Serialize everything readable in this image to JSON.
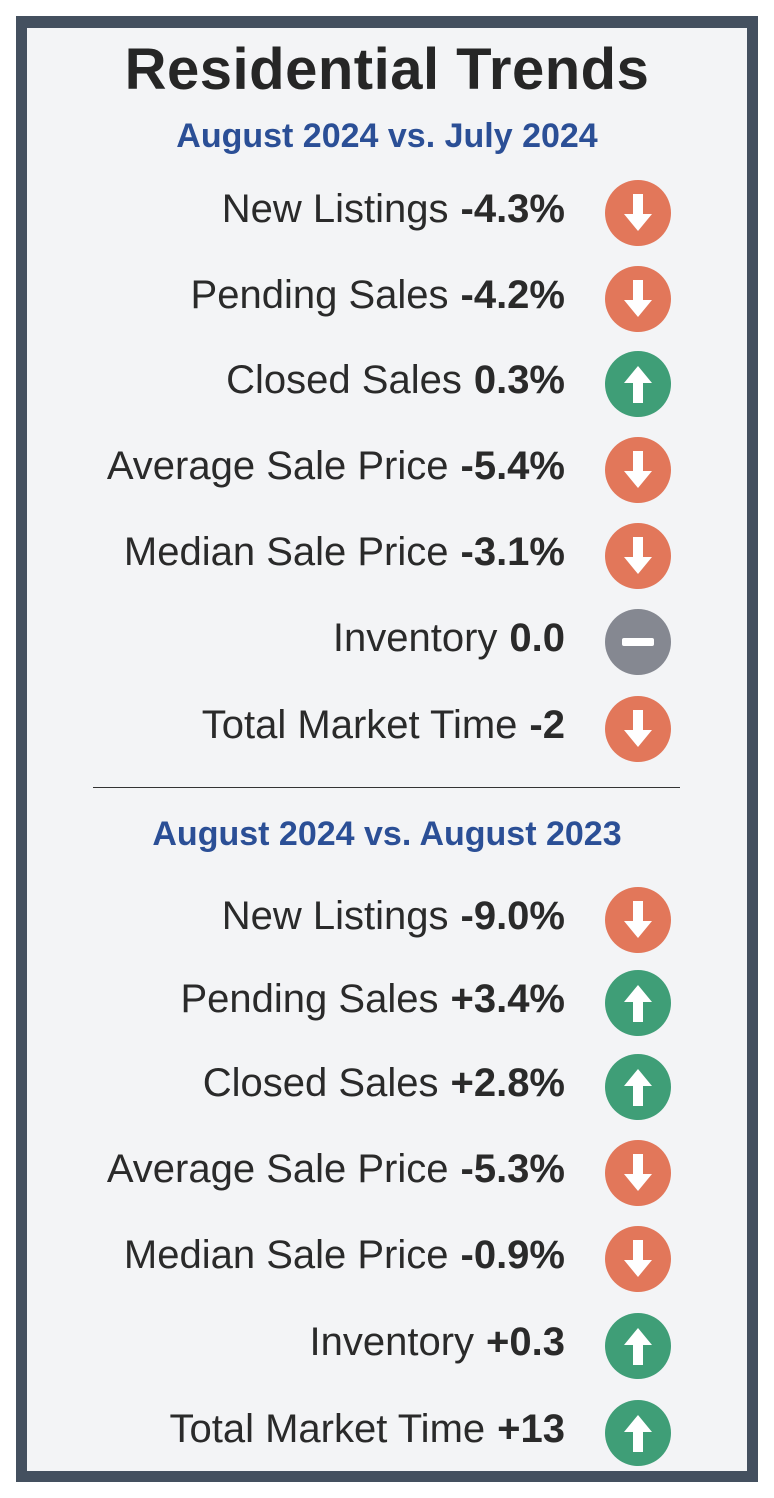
{
  "title": "Residential Trends",
  "colors": {
    "down": "#e2775a",
    "up": "#3f9e77",
    "flat": "#858891",
    "subtitle": "#2b4f96",
    "frame": "#44505f"
  },
  "sections": [
    {
      "subtitle": "August 2024 vs. July 2024",
      "rows": [
        {
          "label": "New Listings",
          "value": "-4.3%",
          "trend": "down"
        },
        {
          "label": "Pending Sales",
          "value": "-4.2%",
          "trend": "down"
        },
        {
          "label": "Closed Sales",
          "value": "0.3%",
          "trend": "up"
        },
        {
          "label": "Average Sale Price",
          "value": "-5.4%",
          "trend": "down"
        },
        {
          "label": "Median Sale Price",
          "value": "-3.1%",
          "trend": "down"
        },
        {
          "label": "Inventory",
          "value": "0.0",
          "trend": "flat"
        },
        {
          "label": "Total Market Time",
          "value": "-2",
          "trend": "down"
        }
      ]
    },
    {
      "subtitle": "August 2024 vs. August 2023",
      "rows": [
        {
          "label": "New Listings",
          "value": "-9.0%",
          "trend": "down"
        },
        {
          "label": "Pending Sales",
          "value": "+3.4%",
          "trend": "up"
        },
        {
          "label": "Closed Sales",
          "value": "+2.8%",
          "trend": "up"
        },
        {
          "label": "Average Sale Price",
          "value": "-5.3%",
          "trend": "down"
        },
        {
          "label": "Median Sale Price",
          "value": "-0.9%",
          "trend": "down"
        },
        {
          "label": "Inventory",
          "value": "+0.3",
          "trend": "up"
        },
        {
          "label": "Total Market Time",
          "value": "+13",
          "trend": "up"
        }
      ]
    }
  ]
}
